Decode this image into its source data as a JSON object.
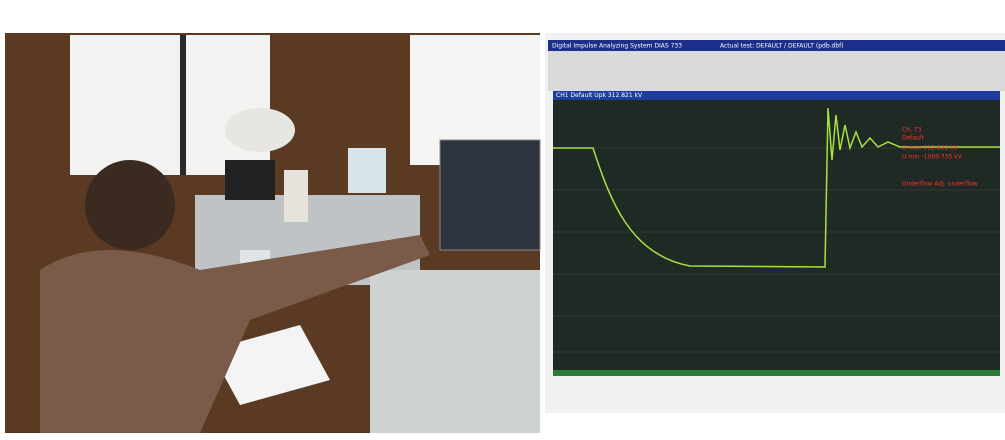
{
  "window": {
    "title": "Digital Impulse Analyzing System DIAS 733",
    "test": "Actual test: DEFAULT / DEFAULT (pdb.dbf)"
  },
  "plot": {
    "header": "CH1  Default Upk  312.821 kV",
    "readout": [
      "Ch. 73",
      "Default",
      "U max   312.821 kV",
      "U min  -1069.735 kV",
      "Underflow Adj. underflow"
    ]
  }
}
